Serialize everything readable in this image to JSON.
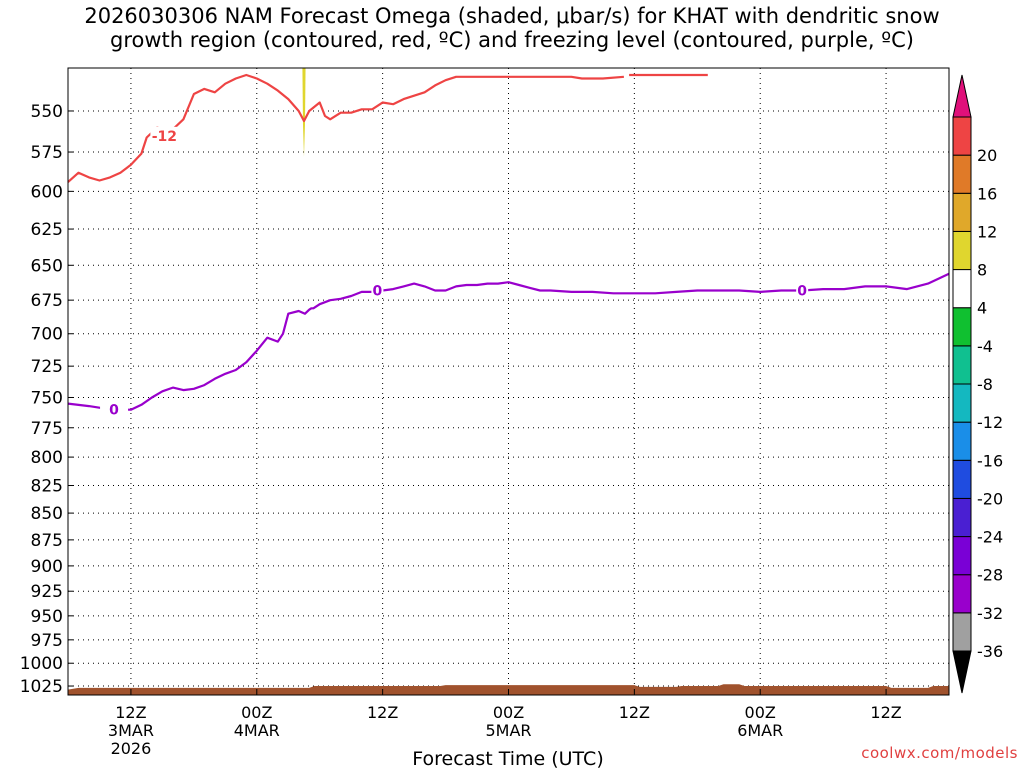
{
  "title": {
    "line1": "2026030306 NAM Forecast Omega (shaded, μbar/s) for KHAT with dendritic snow",
    "line2": "growth region (contoured, red, ºC) and freezing level (contoured, purple, ºC)"
  },
  "watermark": "coolwx.com/models",
  "chart_data": {
    "type": "line",
    "title": "2026030306 NAM Forecast Omega (shaded, μbar/s) for KHAT with dendritic snow growth region (contoured, red, ºC) and freezing level (contoured, purple, ºC)",
    "xlabel": "Forecast Time (UTC)",
    "ylabel": "",
    "x_unit": "forecast hour",
    "xlim": [
      0,
      84
    ],
    "ylim": [
      1035,
      525
    ],
    "y_scale": "log",
    "y_ticks": [
      550,
      575,
      600,
      625,
      650,
      675,
      700,
      725,
      750,
      775,
      800,
      825,
      850,
      875,
      900,
      925,
      950,
      975,
      1000,
      1025
    ],
    "x_ticks": [
      {
        "x": 6,
        "line1": "12Z",
        "line2": "3MAR",
        "line3": "2026"
      },
      {
        "x": 18,
        "line1": "00Z",
        "line2": "4MAR",
        "line3": ""
      },
      {
        "x": 30,
        "line1": "12Z",
        "line2": "",
        "line3": ""
      },
      {
        "x": 42,
        "line1": "00Z",
        "line2": "5MAR",
        "line3": ""
      },
      {
        "x": 54,
        "line1": "12Z",
        "line2": "",
        "line3": ""
      },
      {
        "x": 66,
        "line1": "00Z",
        "line2": "6MAR",
        "line3": ""
      },
      {
        "x": 78,
        "line1": "12Z",
        "line2": "",
        "line3": ""
      }
    ],
    "grid": true,
    "series": [
      {
        "name": "-12",
        "color": "#ee4444",
        "label_at": [
          9.0,
          565
        ],
        "x": [
          0,
          1,
          2,
          3,
          4,
          5,
          6,
          7,
          7.5,
          8.5,
          9,
          10,
          11,
          12,
          13,
          14,
          15,
          16,
          17,
          18,
          19,
          20,
          21,
          22,
          22.5,
          23,
          24,
          24.5,
          25,
          26,
          27,
          28,
          29,
          30,
          31,
          32,
          33,
          34,
          35,
          36,
          37,
          48,
          49,
          51,
          53
        ],
        "y": [
          594,
          588,
          591,
          593,
          591,
          588,
          583,
          576,
          566,
          560,
          561,
          561,
          555,
          540,
          537,
          539,
          534,
          531,
          529,
          531,
          534,
          538,
          543,
          550,
          556,
          550,
          545,
          553,
          555,
          551,
          551,
          549,
          549,
          545,
          546,
          543,
          541,
          539,
          535,
          532,
          530,
          530,
          531,
          531,
          530
        ]
      },
      {
        "name": "-12b",
        "color": "#ee4444",
        "x": [
          53.5,
          55,
          58,
          61
        ],
        "y": [
          529,
          529,
          529,
          529
        ]
      },
      {
        "name": "0",
        "color": "#9900cc",
        "label_at": [
          4.2,
          760
        ],
        "x": [
          0,
          2,
          4.2,
          6,
          7,
          8,
          9,
          10,
          11,
          12,
          13,
          14,
          15,
          16,
          17,
          18,
          19,
          20,
          20.5,
          21,
          22,
          22.6,
          23,
          23.2,
          23.4,
          24,
          25,
          26,
          27,
          28,
          29,
          30,
          31,
          32,
          33,
          34,
          35,
          36,
          37,
          38,
          39,
          40,
          41,
          42,
          43,
          44,
          45,
          46,
          48,
          50,
          52,
          54,
          56,
          58,
          60,
          62,
          64,
          66,
          68,
          70,
          72,
          74,
          76,
          78,
          80,
          82,
          84
        ],
        "y": [
          755,
          757,
          760,
          760,
          756,
          750,
          745,
          742,
          744,
          743,
          740,
          735,
          731,
          728,
          722,
          713,
          703,
          706,
          700,
          685,
          683,
          685,
          682,
          681,
          681,
          678,
          675,
          674,
          672,
          669,
          669,
          668,
          667,
          665,
          663,
          665,
          668,
          668,
          665,
          664,
          664,
          663,
          663,
          662,
          664,
          666,
          668,
          668,
          669,
          669,
          670,
          670,
          670,
          669,
          668,
          668,
          668,
          669,
          668,
          668,
          667,
          667,
          665,
          665,
          667,
          663,
          656
        ]
      }
    ],
    "shading": {
      "name": "Omega",
      "units": "μbar/s",
      "features": [
        {
          "x_center": 22.5,
          "half_width": 0.15,
          "y_top": 525,
          "y_bottom": 578,
          "value": 6,
          "color": "#e0d62e"
        }
      ]
    },
    "terrain": {
      "color": "#a0522d",
      "x": [
        0,
        1,
        23,
        23.5,
        35.5,
        36,
        54,
        54.5,
        58,
        58.5,
        62,
        62.5,
        64,
        64.5,
        78,
        78.5,
        82,
        82.5,
        84
      ],
      "y": [
        1029,
        1027,
        1027,
        1025,
        1025,
        1024,
        1024,
        1026,
        1026,
        1025,
        1025,
        1023,
        1023,
        1025,
        1025,
        1027,
        1027,
        1025,
        1025
      ]
    },
    "colorbar": {
      "levels": [
        -36,
        -32,
        -28,
        -24,
        -20,
        -16,
        -12,
        -8,
        -4,
        4,
        8,
        12,
        16,
        20
      ],
      "colors": [
        "#a0a0a0",
        "#9900cc",
        "#7a00d6",
        "#4a1fd2",
        "#1f4ce0",
        "#1a8ee8",
        "#14b8c0",
        "#10c090",
        "#10c030",
        "#ffffff",
        "#e0d62e",
        "#e0a82a",
        "#e07a28",
        "#ee4444"
      ],
      "under_color": "#000000",
      "over_color": "#e0107a"
    }
  }
}
